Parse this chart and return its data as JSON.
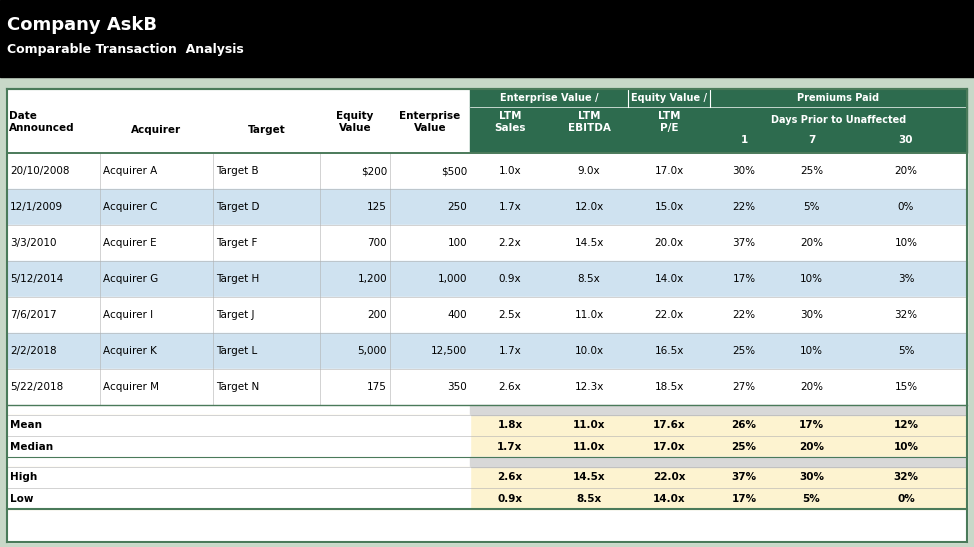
{
  "title1": "Company AskB",
  "title2": "Comparable Transaction  Analysis",
  "header_bg": "#000000",
  "table_bg_white": "#ffffff",
  "table_bg_light_blue": "#cfe2f0",
  "table_bg_light_yellow": "#fdf3d0",
  "table_border_color": "#4a7a5a",
  "col_header_dark_green": "#2d6b4e",
  "body_text_color": "#000000",
  "outer_bg": "#c8d8c8",
  "transactions": [
    [
      "20/10/2008",
      "Acquirer A",
      "Target B",
      "$200",
      "$500",
      "1.0x",
      "9.0x",
      "17.0x",
      "30%",
      "25%",
      "20%"
    ],
    [
      "12/1/2009",
      "Acquirer C",
      "Target D",
      "125",
      "250",
      "1.7x",
      "12.0x",
      "15.0x",
      "22%",
      "5%",
      "0%"
    ],
    [
      "3/3/2010",
      "Acquirer E",
      "Target F",
      "700",
      "100",
      "2.2x",
      "14.5x",
      "20.0x",
      "37%",
      "20%",
      "10%"
    ],
    [
      "5/12/2014",
      "Acquirer G",
      "Target H",
      "1,200",
      "1,000",
      "0.9x",
      "8.5x",
      "14.0x",
      "17%",
      "10%",
      "3%"
    ],
    [
      "7/6/2017",
      "Acquirer I",
      "Target J",
      "200",
      "400",
      "2.5x",
      "11.0x",
      "22.0x",
      "22%",
      "30%",
      "32%"
    ],
    [
      "2/2/2018",
      "Acquirer K",
      "Target L",
      "5,000",
      "12,500",
      "1.7x",
      "10.0x",
      "16.5x",
      "25%",
      "10%",
      "5%"
    ],
    [
      "5/22/2018",
      "Acquirer M",
      "Target N",
      "175",
      "350",
      "2.6x",
      "12.3x",
      "18.5x",
      "27%",
      "20%",
      "15%"
    ]
  ],
  "row_bg_colors": [
    "#ffffff",
    "#cfe2f0",
    "#ffffff",
    "#cfe2f0",
    "#ffffff",
    "#cfe2f0",
    "#ffffff"
  ],
  "stats_mean": [
    "1.8x",
    "11.0x",
    "17.6x",
    "26%",
    "17%",
    "12%"
  ],
  "stats_median": [
    "1.7x",
    "11.0x",
    "17.0x",
    "25%",
    "20%",
    "10%"
  ],
  "stats_high": [
    "2.6x",
    "14.5x",
    "22.0x",
    "37%",
    "30%",
    "32%"
  ],
  "stats_low": [
    "0.9x",
    "8.5x",
    "14.0x",
    "17%",
    "5%",
    "0%"
  ]
}
